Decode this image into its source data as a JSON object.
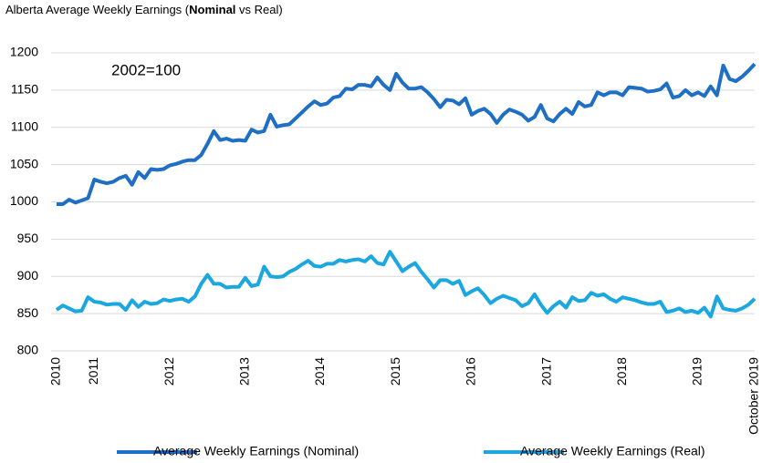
{
  "chart_data": {
    "type": "line",
    "title_parts": [
      {
        "text": "Alberta Average Weekly Earnings (",
        "bold": false
      },
      {
        "text": "Nominal",
        "bold": true
      },
      {
        "text": " vs Real)",
        "bold": false
      }
    ],
    "annotation": "2002=100",
    "categories": [
      "2010",
      null,
      null,
      null,
      null,
      null,
      "2011",
      null,
      null,
      null,
      null,
      null,
      null,
      null,
      null,
      null,
      null,
      null,
      "2012",
      null,
      null,
      null,
      null,
      null,
      null,
      null,
      null,
      null,
      null,
      null,
      "2013",
      null,
      null,
      null,
      null,
      null,
      null,
      null,
      null,
      null,
      null,
      null,
      "2014",
      null,
      null,
      null,
      null,
      null,
      null,
      null,
      null,
      null,
      null,
      null,
      "2015",
      null,
      null,
      null,
      null,
      null,
      null,
      null,
      null,
      null,
      null,
      null,
      "2016",
      null,
      null,
      null,
      null,
      null,
      null,
      null,
      null,
      null,
      null,
      null,
      "2017",
      null,
      null,
      null,
      null,
      null,
      null,
      null,
      null,
      null,
      null,
      null,
      "2018",
      null,
      null,
      null,
      null,
      null,
      null,
      null,
      null,
      null,
      null,
      null,
      "2019",
      null,
      null,
      null,
      null,
      null,
      null,
      null,
      null,
      "October 2019"
    ],
    "series": [
      {
        "name": "Average Weekly Earnings (Nominal)",
        "color": "#1f6fc5",
        "values": [
          997,
          997,
          1003,
          999,
          1002,
          1005,
          1030,
          1027,
          1025,
          1027,
          1032,
          1035,
          1023,
          1040,
          1032,
          1044,
          1043,
          1044,
          1049,
          1051,
          1054,
          1056,
          1056,
          1063,
          1078,
          1095,
          1083,
          1085,
          1082,
          1083,
          1082,
          1097,
          1093,
          1095,
          1117,
          1101,
          1103,
          1104,
          1112,
          1120,
          1128,
          1135,
          1130,
          1132,
          1140,
          1142,
          1152,
          1151,
          1157,
          1157,
          1155,
          1167,
          1157,
          1150,
          1172,
          1160,
          1152,
          1152,
          1154,
          1147,
          1138,
          1127,
          1137,
          1136,
          1131,
          1139,
          1117,
          1122,
          1125,
          1118,
          1106,
          1117,
          1124,
          1121,
          1117,
          1109,
          1114,
          1130,
          1112,
          1108,
          1118,
          1125,
          1118,
          1134,
          1128,
          1130,
          1147,
          1143,
          1147,
          1147,
          1143,
          1154,
          1153,
          1152,
          1148,
          1149,
          1151,
          1159,
          1140,
          1142,
          1150,
          1143,
          1147,
          1142,
          1155,
          1143,
          1183,
          1165,
          1162,
          1168,
          1176,
          1185
        ]
      },
      {
        "name": "Average Weekly Earnings (Real)",
        "color": "#1ba7e0",
        "values": [
          855,
          861,
          857,
          853,
          854,
          872,
          866,
          865,
          862,
          863,
          863,
          855,
          868,
          859,
          866,
          863,
          864,
          869,
          867,
          869,
          870,
          866,
          873,
          890,
          902,
          890,
          890,
          885,
          886,
          886,
          898,
          887,
          889,
          913,
          900,
          899,
          900,
          906,
          910,
          916,
          921,
          914,
          913,
          917,
          917,
          922,
          920,
          922,
          923,
          920,
          927,
          918,
          916,
          933,
          920,
          907,
          913,
          918,
          906,
          896,
          885,
          895,
          895,
          890,
          894,
          875,
          880,
          884,
          875,
          864,
          870,
          874,
          871,
          868,
          860,
          864,
          876,
          862,
          851,
          860,
          866,
          858,
          872,
          867,
          868,
          878,
          874,
          876,
          870,
          866,
          872,
          870,
          868,
          865,
          863,
          863,
          866,
          852,
          854,
          857,
          852,
          854,
          851,
          858,
          846,
          873,
          857,
          855,
          854,
          857,
          862,
          870
        ]
      }
    ],
    "ylim": [
      800,
      1200
    ],
    "yticks": [
      800,
      850,
      900,
      950,
      1000,
      1050,
      1100,
      1150,
      1200
    ],
    "grid": true,
    "legend": "bottom"
  }
}
